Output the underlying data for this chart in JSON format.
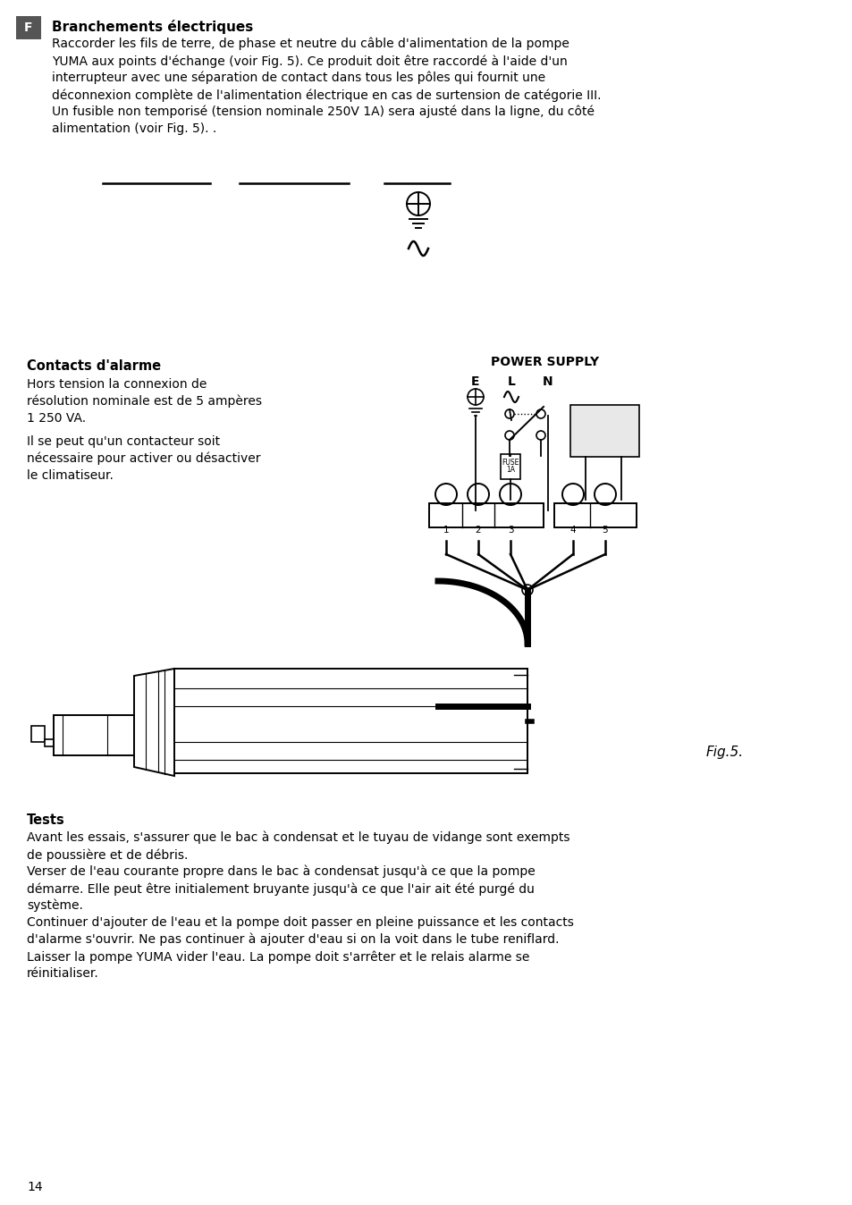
{
  "bg_color": "#ffffff",
  "text_color": "#000000",
  "page_number": "14",
  "section_label": "F",
  "section_label_bg": "#555555",
  "section_title": "Branchements électriques",
  "para1_lines": [
    "Raccorder les fils de terre, de phase et neutre du câble d'alimentation de la pompe",
    "YUMA aux points d'échange (voir Fig. 5). Ce produit doit être raccordé à l'aide d'un",
    "interrupteur avec une séparation de contact dans tous les pôles qui fournit une",
    "déconnexion complète de l'alimentation électrique en cas de surtension de catégorie III.",
    "Un fusible non temporisé (tension nominale 250V 1A) sera ajusté dans la ligne, du côté",
    "alimentation (voir Fig. 5). ."
  ],
  "power_supply_label": "POWER SUPPLY",
  "ELN_labels": [
    "E",
    "L",
    "N"
  ],
  "alarm_title": "Contacts d'alarme",
  "alarm_para1_lines": [
    "Hors tension la connexion de",
    "résolution nominale est de 5 ampères",
    "1 250 VA."
  ],
  "alarm_para2_lines": [
    "Il se peut qu'un contacteur soit",
    "nécessaire pour activer ou désactiver",
    "le climatiseur."
  ],
  "fig_label": "Fig.5.",
  "tests_title": "Tests",
  "tests_lines": [
    "Avant les essais, s'assurer que le bac à condensat et le tuyau de vidange sont exempts",
    "de poussière et de débris.",
    "Verser de l'eau courante propre dans le bac à condensat jusqu'à ce que la pompe",
    "démarre. Elle peut être initialement bruyante jusqu'à ce que l'air ait été purgé du",
    "système.",
    "Continuer d'ajouter de l'eau et la pompe doit passer en pleine puissance et les contacts",
    "d'alarme s'ouvrir. Ne pas continuer à ajouter d'eau si on la voit dans le tube reniflard.",
    "Laisser la pompe YUMA vider l'eau. La pompe doit s'arrêter et le relais alarme se",
    "réinitialiser."
  ]
}
